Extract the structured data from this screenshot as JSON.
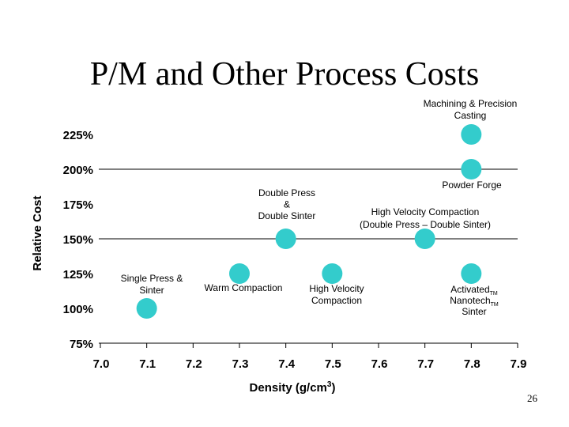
{
  "slide": {
    "title": "P/M and Other Process Costs",
    "page_number": "26"
  },
  "chart_data": {
    "type": "scatter",
    "title": "",
    "xlabel": "Density (g/cm3)",
    "ylabel": "Relative Cost",
    "xlim": [
      7.0,
      7.9
    ],
    "ylim": [
      75,
      225
    ],
    "x_ticks": [
      "7.0",
      "7.1",
      "7.2",
      "7.3",
      "7.4",
      "7.5",
      "7.6",
      "7.7",
      "7.8",
      "7.9"
    ],
    "y_ticks": [
      "75%",
      "100%",
      "125%",
      "150%",
      "175%",
      "200%",
      "225%"
    ],
    "gridlines_y": [
      75,
      150,
      200
    ],
    "marker_color": "#33CCCC",
    "points": [
      {
        "x": 7.1,
        "y": 100,
        "label": [
          "Single Press &",
          "Sinter"
        ]
      },
      {
        "x": 7.3,
        "y": 125,
        "label": [
          "Warm Compaction"
        ]
      },
      {
        "x": 7.4,
        "y": 150,
        "label": [
          "Double Press",
          "&",
          "Double Sinter"
        ]
      },
      {
        "x": 7.5,
        "y": 125,
        "label": [
          "High Velocity",
          "Compaction"
        ]
      },
      {
        "x": 7.7,
        "y": 150,
        "label": [
          "High Velocity Compaction",
          "(Double Press – Double Sinter)"
        ]
      },
      {
        "x": 7.8,
        "y": 125,
        "label": [
          "ActivatedTM",
          "NanotechTM",
          "Sinter"
        ]
      },
      {
        "x": 7.8,
        "y": 200,
        "label": [
          "Powder Forge"
        ]
      },
      {
        "x": 7.8,
        "y": 225,
        "label": [
          "Machining & Precision",
          "Casting"
        ]
      }
    ]
  }
}
